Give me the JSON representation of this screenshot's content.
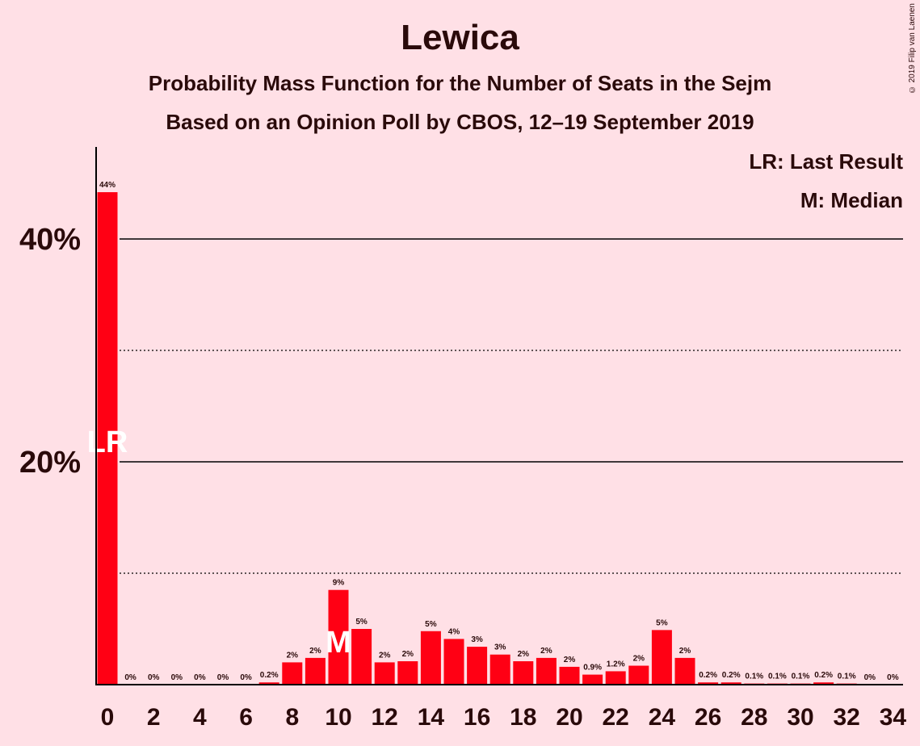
{
  "chart_data": {
    "type": "bar",
    "title": "Lewica",
    "subtitle": "Probability Mass Function for the Number of Seats in the Sejm",
    "subtitle2": "Based on an Opinion Poll by CBOS, 12–19 September 2019",
    "copyright": "© 2019 Filip van Laenen",
    "legend": [
      "LR: Last Result",
      "M: Median"
    ],
    "legend_position": "top-right",
    "x": [
      0,
      1,
      2,
      3,
      4,
      5,
      6,
      7,
      8,
      9,
      10,
      11,
      12,
      13,
      14,
      15,
      16,
      17,
      18,
      19,
      20,
      21,
      22,
      23,
      24,
      25,
      26,
      27,
      28,
      29,
      30,
      31,
      32,
      33,
      34
    ],
    "values": [
      44.2,
      0,
      0,
      0,
      0,
      0,
      0,
      0.2,
      2.0,
      2.4,
      8.5,
      5.0,
      2.0,
      2.1,
      4.8,
      4.1,
      3.4,
      2.7,
      2.1,
      2.4,
      1.6,
      0.9,
      1.2,
      1.7,
      4.9,
      2.4,
      0.2,
      0.2,
      0.1,
      0.1,
      0.1,
      0.2,
      0.1,
      0,
      0
    ],
    "labels": [
      "44%",
      "0%",
      "0%",
      "0%",
      "0%",
      "0%",
      "0%",
      "0.2%",
      "2%",
      "2%",
      "9%",
      "5%",
      "2%",
      "2%",
      "5%",
      "4%",
      "3%",
      "3%",
      "2%",
      "2%",
      "2%",
      "0.9%",
      "1.2%",
      "2%",
      "5%",
      "2%",
      "0.2%",
      "0.2%",
      "0.1%",
      "0.1%",
      "0.1%",
      "0.2%",
      "0.1%",
      "0%",
      "0%"
    ],
    "x_tick_labels": [
      "0",
      "2",
      "4",
      "6",
      "8",
      "10",
      "12",
      "14",
      "16",
      "18",
      "20",
      "22",
      "24",
      "26",
      "28",
      "30",
      "32",
      "34"
    ],
    "y_ticks": [
      {
        "value": 20,
        "label": "20%"
      },
      {
        "value": 40,
        "label": "40%"
      }
    ],
    "dotted_gridlines": [
      10,
      30
    ],
    "ylim": [
      0,
      48
    ],
    "last_result": {
      "x": 0,
      "label": "LR"
    },
    "median": {
      "x": 10,
      "label": "M"
    },
    "colors": {
      "bar": "#ff0014",
      "background": "#ffe0e6",
      "axis": "#000000"
    }
  }
}
